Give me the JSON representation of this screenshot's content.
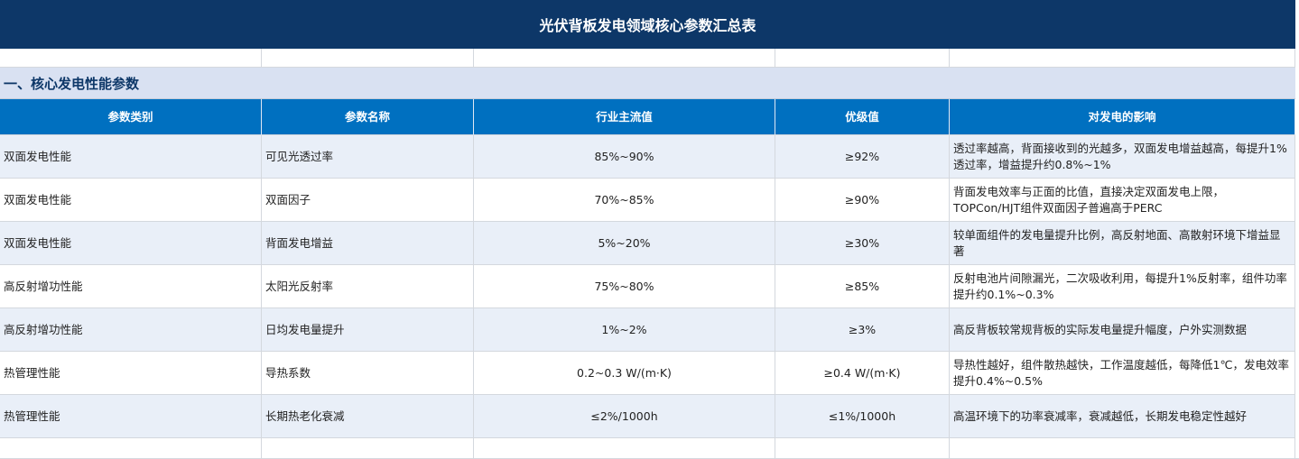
{
  "title": "光伏背板发电领域核心参数汇总表",
  "section": "一、核心发电性能参数",
  "table": {
    "headers": [
      "参数类别",
      "参数名称",
      "行业主流值",
      "优级值",
      "对发电的影响"
    ],
    "rows": [
      [
        "双面发电性能",
        "可见光透过率",
        "85%~90%",
        "≥92%",
        "透过率越高，背面接收到的光越多，双面发电增益越高，每提升1%透过率，增益提升约0.8%~1%"
      ],
      [
        "双面发电性能",
        "双面因子",
        "70%~85%",
        "≥90%",
        "背面发电效率与正面的比值，直接决定双面发电上限，TOPCon/HJT组件双面因子普遍高于PERC"
      ],
      [
        "双面发电性能",
        "背面发电增益",
        "5%~20%",
        "≥30%",
        "较单面组件的发电量提升比例，高反射地面、高散射环境下增益显著"
      ],
      [
        "高反射增功性能",
        "太阳光反射率",
        "75%~80%",
        "≥85%",
        "反射电池片间隙漏光，二次吸收利用，每提升1%反射率，组件功率提升约0.1%~0.3%"
      ],
      [
        "高反射增功性能",
        "日均发电量提升",
        "1%~2%",
        "≥3%",
        "高反背板较常规背板的实际发电量提升幅度，户外实测数据"
      ],
      [
        "热管理性能",
        "导热系数",
        "0.2~0.3 W/(m·K)",
        "≥0.4 W/(m·K)",
        "导热性越好，组件散热越快，工作温度越低，每降低1℃，发电效率提升0.4%~0.5%"
      ],
      [
        "热管理性能",
        "长期热老化衰减",
        "≤2%/1000h",
        "≤1%/1000h",
        "高温环境下的功率衰减率，衰减越低，长期发电稳定性越好"
      ]
    ]
  }
}
